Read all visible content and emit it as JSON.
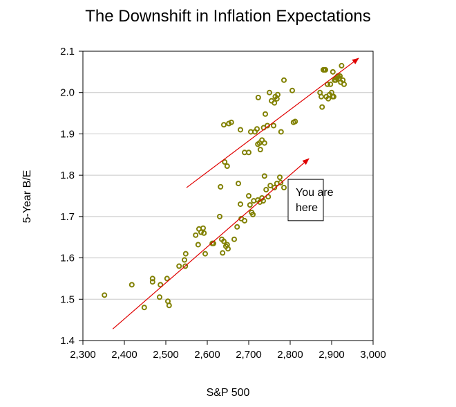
{
  "chart_data": {
    "type": "scatter",
    "title": "The Downshift in Inflation Expectations",
    "xlabel": "S&P 500",
    "ylabel": "5-Year B/E",
    "xlim": [
      2300,
      3000
    ],
    "ylim": [
      1.4,
      2.1
    ],
    "x_ticks": [
      2300,
      2400,
      2500,
      2600,
      2700,
      2800,
      2900,
      3000
    ],
    "x_tick_labels": [
      "2,300",
      "2,400",
      "2,500",
      "2,600",
      "2,700",
      "2,800",
      "2,900",
      "3,000"
    ],
    "y_ticks": [
      1.4,
      1.5,
      1.6,
      1.7,
      1.8,
      1.9,
      2.0,
      2.1
    ],
    "y_tick_labels": [
      "1.4",
      "1.5",
      "1.6",
      "1.7",
      "1.8",
      "1.9",
      "2.0",
      "2.1"
    ],
    "grid": "horizontal",
    "marker_color": "#808000",
    "arrow_color": "#e00000",
    "points": [
      [
        2352,
        1.51
      ],
      [
        2418,
        1.535
      ],
      [
        2448,
        1.48
      ],
      [
        2468,
        1.55
      ],
      [
        2468,
        1.542
      ],
      [
        2485,
        1.505
      ],
      [
        2487,
        1.535
      ],
      [
        2503,
        1.55
      ],
      [
        2505,
        1.495
      ],
      [
        2508,
        1.485
      ],
      [
        2532,
        1.58
      ],
      [
        2545,
        1.595
      ],
      [
        2547,
        1.58
      ],
      [
        2548,
        1.61
      ],
      [
        2572,
        1.655
      ],
      [
        2578,
        1.632
      ],
      [
        2580,
        1.67
      ],
      [
        2585,
        1.662
      ],
      [
        2590,
        1.672
      ],
      [
        2592,
        1.66
      ],
      [
        2595,
        1.61
      ],
      [
        2612,
        1.635
      ],
      [
        2615,
        1.635
      ],
      [
        2630,
        1.7
      ],
      [
        2632,
        1.772
      ],
      [
        2635,
        1.645
      ],
      [
        2637,
        1.612
      ],
      [
        2640,
        1.64
      ],
      [
        2645,
        1.628
      ],
      [
        2648,
        1.632
      ],
      [
        2650,
        1.622
      ],
      [
        2665,
        1.645
      ],
      [
        2672,
        1.675
      ],
      [
        2675,
        1.78
      ],
      [
        2680,
        1.73
      ],
      [
        2682,
        1.695
      ],
      [
        2690,
        1.69
      ],
      [
        2700,
        1.75
      ],
      [
        2703,
        1.728
      ],
      [
        2707,
        1.71
      ],
      [
        2712,
        1.738
      ],
      [
        2710,
        1.705
      ],
      [
        2722,
        1.74
      ],
      [
        2727,
        1.735
      ],
      [
        2732,
        1.745
      ],
      [
        2735,
        1.738
      ],
      [
        2738,
        1.798
      ],
      [
        2742,
        1.765
      ],
      [
        2747,
        1.748
      ],
      [
        2752,
        1.775
      ],
      [
        2762,
        1.77
      ],
      [
        2768,
        1.78
      ],
      [
        2775,
        1.795
      ],
      [
        2777,
        1.782
      ],
      [
        2785,
        1.77
      ],
      [
        2640,
        1.922
      ],
      [
        2642,
        1.832
      ],
      [
        2648,
        1.822
      ],
      [
        2652,
        1.925
      ],
      [
        2658,
        1.928
      ],
      [
        2680,
        1.91
      ],
      [
        2690,
        1.855
      ],
      [
        2700,
        1.855
      ],
      [
        2705,
        1.905
      ],
      [
        2715,
        1.905
      ],
      [
        2720,
        1.912
      ],
      [
        2722,
        1.875
      ],
      [
        2723,
        1.988
      ],
      [
        2726,
        1.878
      ],
      [
        2728,
        1.862
      ],
      [
        2732,
        1.885
      ],
      [
        2736,
        1.915
      ],
      [
        2738,
        1.878
      ],
      [
        2740,
        1.948
      ],
      [
        2745,
        1.92
      ],
      [
        2750,
        2.0
      ],
      [
        2755,
        1.98
      ],
      [
        2760,
        1.92
      ],
      [
        2762,
        1.975
      ],
      [
        2764,
        1.99
      ],
      [
        2768,
        1.985
      ],
      [
        2770,
        1.995
      ],
      [
        2778,
        1.905
      ],
      [
        2785,
        2.03
      ],
      [
        2805,
        2.005
      ],
      [
        2808,
        1.928
      ],
      [
        2812,
        1.93
      ],
      [
        2872,
        2.0
      ],
      [
        2875,
        1.99
      ],
      [
        2877,
        1.965
      ],
      [
        2880,
        2.055
      ],
      [
        2882,
        2.055
      ],
      [
        2885,
        2.055
      ],
      [
        2887,
        1.99
      ],
      [
        2890,
        2.02
      ],
      [
        2892,
        1.985
      ],
      [
        2895,
        1.995
      ],
      [
        2897,
        2.02
      ],
      [
        2900,
        2.0
      ],
      [
        2902,
        1.99
      ],
      [
        2903,
        2.05
      ],
      [
        2905,
        1.99
      ],
      [
        2907,
        2.03
      ],
      [
        2910,
        2.03
      ],
      [
        2912,
        2.035
      ],
      [
        2915,
        2.04
      ],
      [
        2918,
        2.035
      ],
      [
        2920,
        2.04
      ],
      [
        2922,
        2.025
      ],
      [
        2924,
        2.065
      ],
      [
        2927,
        2.03
      ],
      [
        2930,
        2.02
      ]
    ],
    "arrows": [
      {
        "from": [
          2372,
          1.428
        ],
        "to": [
          2845,
          1.84
        ]
      },
      {
        "from": [
          2550,
          1.77
        ],
        "to": [
          2965,
          2.083
        ]
      }
    ],
    "annotation": {
      "lines": [
        "You are",
        "here"
      ],
      "box_x": [
        2795,
        2880
      ],
      "box_y": [
        1.69,
        1.79
      ]
    }
  }
}
